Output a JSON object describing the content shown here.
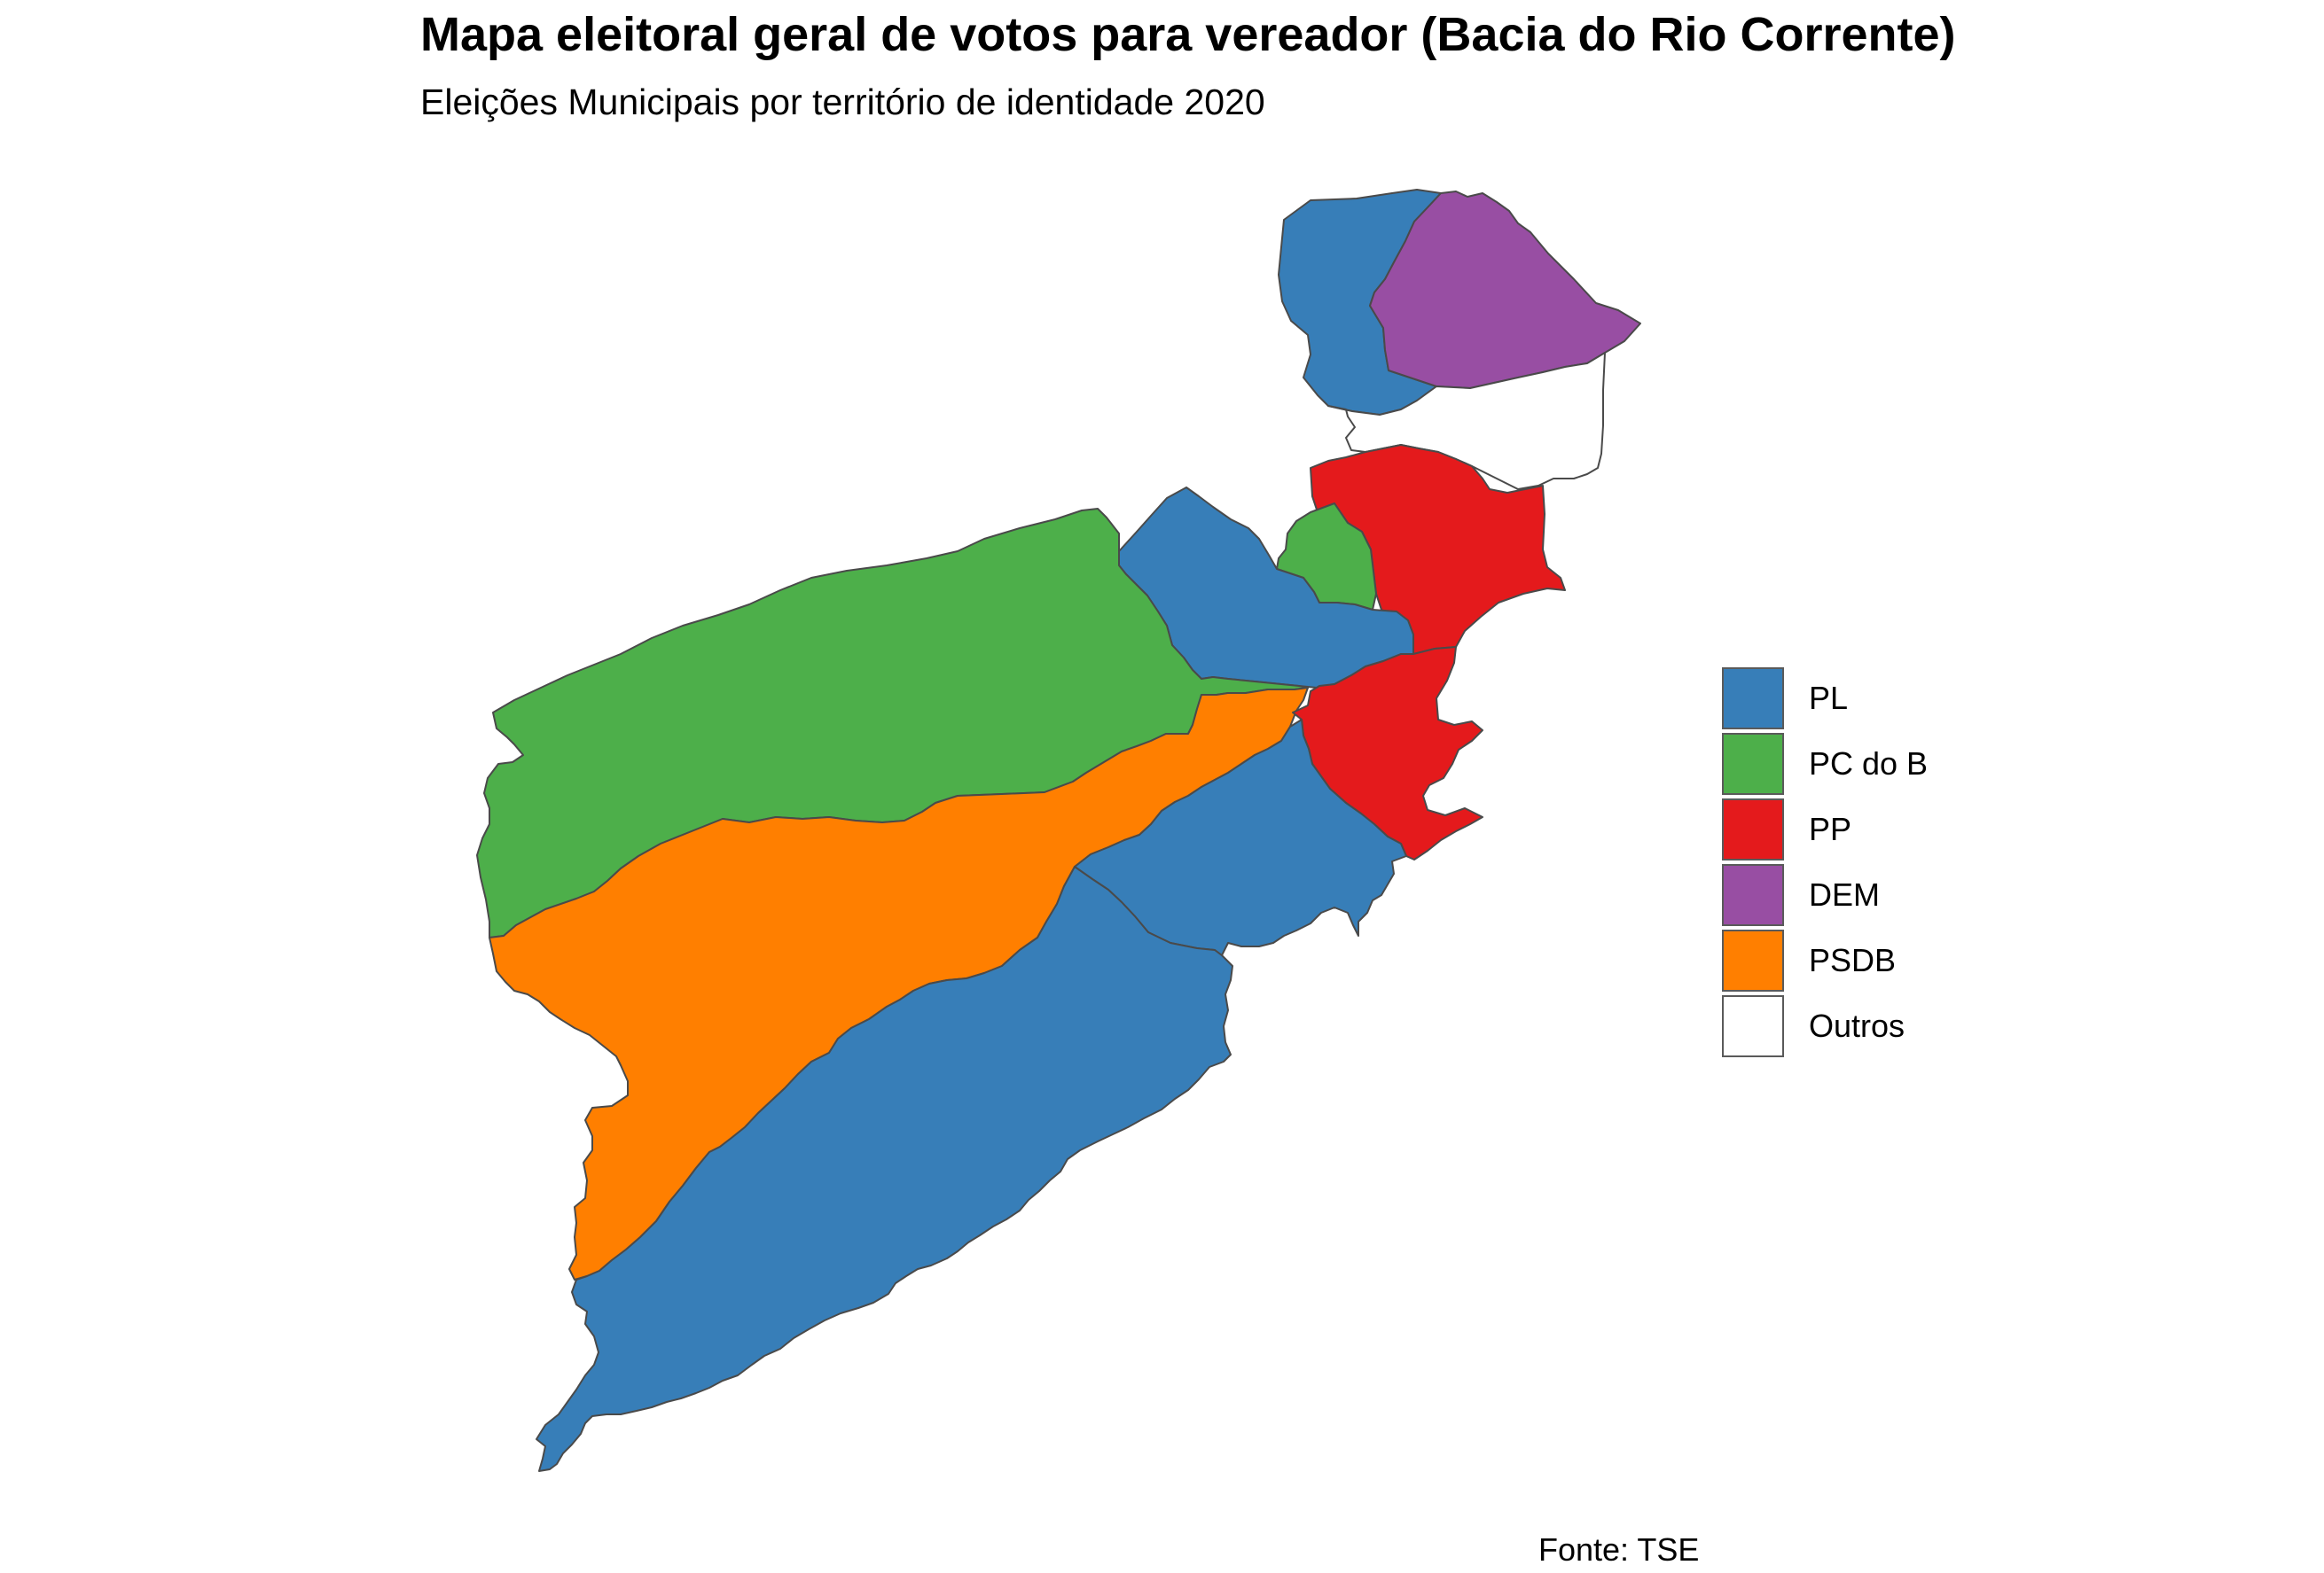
{
  "title": "Mapa eleitoral geral de votos para vereador (Bacia do Rio Corrente)",
  "subtitle": "Eleições Municipais por território de identidade 2020",
  "caption": "Fonte: TSE",
  "legend": [
    {
      "label": "PL",
      "color": "#377EB8"
    },
    {
      "label": "PC do B",
      "color": "#4DAF4A"
    },
    {
      "label": "PP",
      "color": "#E41A1C"
    },
    {
      "label": "DEM",
      "color": "#984EA3"
    },
    {
      "label": "PSDB",
      "color": "#FF7F00"
    },
    {
      "label": "Outros",
      "color": "#FFFFFF"
    }
  ],
  "regions": [
    {
      "party": "PL"
    },
    {
      "party": "DEM"
    },
    {
      "party": "Outros"
    },
    {
      "party": "PP"
    },
    {
      "party": "PC do B"
    },
    {
      "party": "PL"
    },
    {
      "party": "PC do B"
    },
    {
      "party": "PSDB"
    },
    {
      "party": "PP"
    },
    {
      "party": "PL"
    },
    {
      "party": "PL"
    }
  ]
}
